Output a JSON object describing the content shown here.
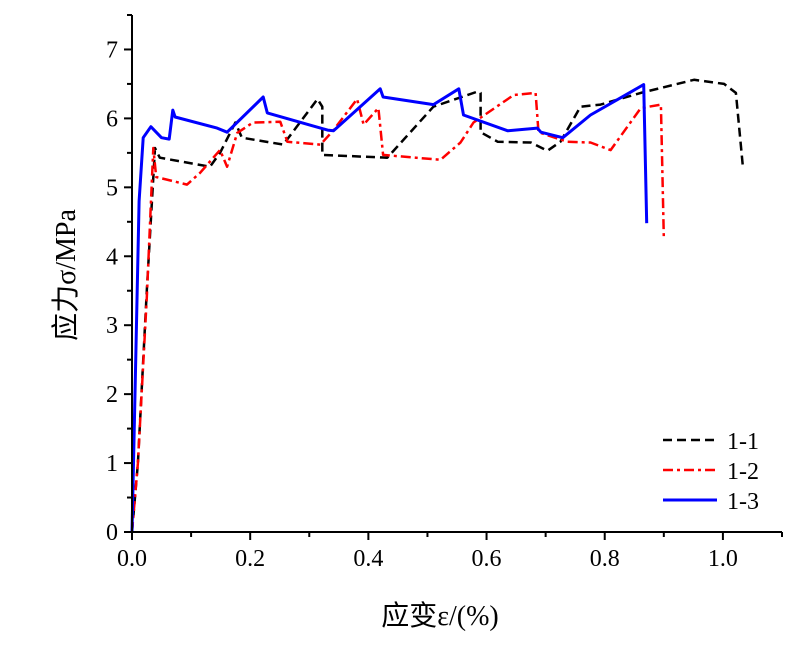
{
  "chart_data": {
    "type": "line",
    "title": "",
    "xlabel": "应变ε/(%)",
    "ylabel": "应力σ/MPa",
    "xlim": [
      0,
      1.1
    ],
    "ylim": [
      0,
      7.5
    ],
    "xticks": [
      "0.0",
      "0.2",
      "0.4",
      "0.6",
      "0.8",
      "1.0"
    ],
    "xtick_values": [
      0,
      0.2,
      0.4,
      0.6,
      0.8,
      1.0
    ],
    "yticks": [
      "0",
      "1",
      "2",
      "3",
      "4",
      "5",
      "6",
      "7"
    ],
    "ytick_values": [
      0,
      1,
      2,
      3,
      4,
      5,
      6,
      7
    ],
    "grid": false,
    "legend_position": "bottom-right",
    "series": [
      {
        "name": "1-1",
        "color": "#000000",
        "style": "dashed",
        "x": [
          0,
          0.01,
          0.025,
          0.039,
          0.047,
          0.132,
          0.149,
          0.175,
          0.186,
          0.256,
          0.314,
          0.322,
          0.322,
          0.432,
          0.51,
          0.585,
          0.59,
          0.59,
          0.619,
          0.675,
          0.703,
          0.725,
          0.759,
          0.793,
          0.861,
          0.951,
          1.002,
          1.022,
          1.034
        ],
        "y": [
          0,
          1.0,
          3.5,
          5.57,
          5.43,
          5.3,
          5.5,
          5.94,
          5.72,
          5.62,
          6.28,
          6.17,
          5.47,
          5.43,
          6.17,
          6.39,
          6.37,
          5.8,
          5.66,
          5.65,
          5.53,
          5.66,
          6.17,
          6.2,
          6.37,
          6.56,
          6.5,
          6.37,
          5.28
        ]
      },
      {
        "name": "1-2",
        "color": "#ff0000",
        "style": "dashdot",
        "x": [
          0,
          0.01,
          0.025,
          0.036,
          0.041,
          0.093,
          0.115,
          0.149,
          0.161,
          0.178,
          0.205,
          0.251,
          0.263,
          0.319,
          0.341,
          0.381,
          0.392,
          0.417,
          0.425,
          0.522,
          0.556,
          0.578,
          0.646,
          0.683,
          0.688,
          0.737,
          0.776,
          0.81,
          0.861,
          0.895,
          0.9
        ],
        "y": [
          0,
          1.0,
          3.4,
          5.57,
          5.15,
          5.04,
          5.21,
          5.54,
          5.3,
          5.79,
          5.94,
          5.95,
          5.66,
          5.62,
          5.83,
          6.28,
          5.91,
          6.15,
          5.47,
          5.4,
          5.65,
          5.94,
          6.34,
          6.37,
          5.8,
          5.66,
          5.65,
          5.54,
          6.15,
          6.2,
          4.28
        ]
      },
      {
        "name": "1-3",
        "color": "#0000ff",
        "style": "solid",
        "x": [
          0,
          0.005,
          0.012,
          0.019,
          0.032,
          0.05,
          0.063,
          0.069,
          0.073,
          0.144,
          0.161,
          0.222,
          0.229,
          0.331,
          0.341,
          0.42,
          0.425,
          0.51,
          0.553,
          0.561,
          0.636,
          0.686,
          0.692,
          0.729,
          0.776,
          0.866,
          0.871
        ],
        "y": [
          0,
          2.0,
          4.8,
          5.72,
          5.88,
          5.72,
          5.7,
          6.12,
          6.02,
          5.86,
          5.8,
          6.31,
          6.08,
          5.83,
          5.82,
          6.43,
          6.31,
          6.2,
          6.43,
          6.05,
          5.82,
          5.86,
          5.8,
          5.72,
          6.05,
          6.49,
          4.48
        ]
      }
    ]
  }
}
